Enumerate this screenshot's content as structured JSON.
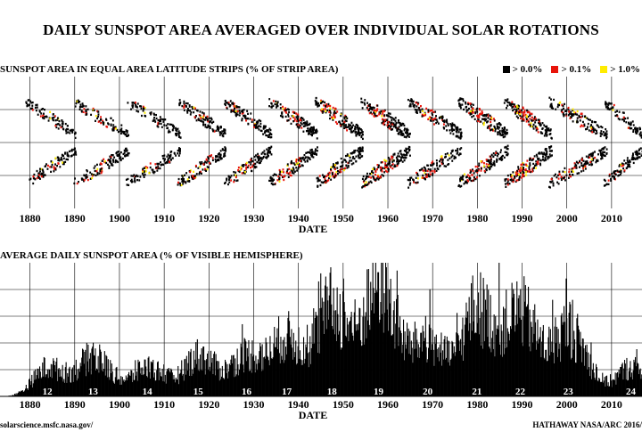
{
  "title": "DAILY SUNSPOT AREA AVERAGED OVER INDIVIDUAL SOLAR ROTATIONS",
  "credits": {
    "source": "solarscience.msfc.nasa.gov/",
    "author": "HATHAWAY  NASA/ARC  2016/"
  },
  "chart_data": [
    {
      "type": "heatmap",
      "title": "SUNSPOT AREA IN EQUAL AREA LATITUDE STRIPS (% OF STRIP AREA)",
      "xlabel": "DATE",
      "xlim": [
        1873.3,
        2016.8
      ],
      "ylim": [
        -1,
        1
      ],
      "x_ticks": [
        1880,
        1890,
        1900,
        1910,
        1920,
        1930,
        1940,
        1950,
        1960,
        1970,
        1980,
        1990,
        2000,
        2010
      ],
      "grid": true,
      "legend_position": "top-right",
      "legend": [
        {
          "label": "> 0.0%",
          "color": "#000000"
        },
        {
          "label": "> 0.1%",
          "color": "#e8140a"
        },
        {
          "label": "> 1.0%",
          "color": "#ffec00"
        }
      ],
      "cycles": [
        {
          "start": 1878.9,
          "end": 1890.2,
          "strength": 0.45
        },
        {
          "start": 1889.5,
          "end": 1902.0,
          "strength": 0.55
        },
        {
          "start": 1901.3,
          "end": 1913.6,
          "strength": 0.45
        },
        {
          "start": 1912.8,
          "end": 1923.8,
          "strength": 0.6
        },
        {
          "start": 1923.3,
          "end": 1933.8,
          "strength": 0.65
        },
        {
          "start": 1933.2,
          "end": 1944.2,
          "strength": 0.75
        },
        {
          "start": 1943.6,
          "end": 1954.3,
          "strength": 0.85
        },
        {
          "start": 1953.8,
          "end": 1964.8,
          "strength": 1.0
        },
        {
          "start": 1964.3,
          "end": 1976.3,
          "strength": 0.7
        },
        {
          "start": 1975.6,
          "end": 1986.7,
          "strength": 0.9
        },
        {
          "start": 1985.8,
          "end": 1996.5,
          "strength": 0.9
        },
        {
          "start": 1995.8,
          "end": 2008.9,
          "strength": 0.75
        },
        {
          "start": 2008.2,
          "end": 2016.8,
          "strength": 0.4
        }
      ]
    },
    {
      "type": "bar",
      "title": "AVERAGE DAILY SUNSPOT AREA (% OF VISIBLE HEMISPHERE)",
      "xlabel": "DATE",
      "xlim": [
        1873.3,
        2016.8
      ],
      "ylim": [
        0,
        0.5
      ],
      "x_ticks": [
        1880,
        1890,
        1900,
        1910,
        1920,
        1930,
        1940,
        1950,
        1960,
        1970,
        1980,
        1990,
        2000,
        2010
      ],
      "grid": true,
      "cycles": [
        {
          "number": "12",
          "max_year": 1883.9,
          "peak": 0.13
        },
        {
          "number": "13",
          "max_year": 1894.1,
          "peak": 0.17
        },
        {
          "number": "14",
          "max_year": 1906.2,
          "peak": 0.13
        },
        {
          "number": "15",
          "max_year": 1917.6,
          "peak": 0.18
        },
        {
          "number": "16",
          "max_year": 1928.4,
          "peak": 0.18
        },
        {
          "number": "17",
          "max_year": 1937.4,
          "peak": 0.25
        },
        {
          "number": "18",
          "max_year": 1947.5,
          "peak": 0.39
        },
        {
          "number": "19",
          "max_year": 1957.9,
          "peak": 0.49
        },
        {
          "number": "20",
          "max_year": 1968.9,
          "peak": 0.24
        },
        {
          "number": "21",
          "max_year": 1979.9,
          "peak": 0.39
        },
        {
          "number": "22",
          "max_year": 1989.6,
          "peak": 0.36
        },
        {
          "number": "23",
          "max_year": 2000.3,
          "peak": 0.29
        },
        {
          "number": "24",
          "max_year": 2014.3,
          "peak": 0.13
        }
      ]
    }
  ]
}
